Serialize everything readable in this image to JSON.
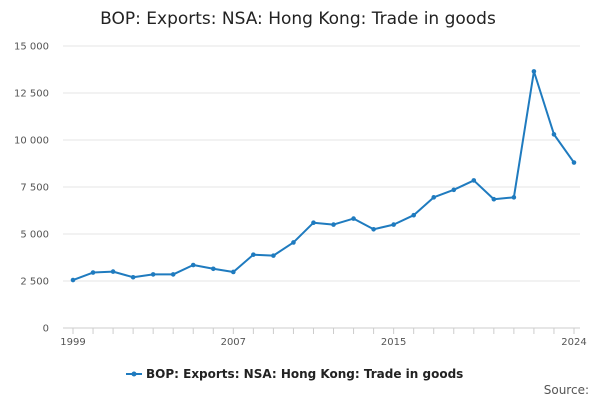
{
  "chart_data": {
    "type": "line",
    "title": "BOP: Exports: NSA: Hong Kong: Trade in goods",
    "xlabel": "",
    "ylabel": "",
    "x": [
      1999,
      2000,
      2001,
      2002,
      2003,
      2004,
      2005,
      2006,
      2007,
      2008,
      2009,
      2010,
      2011,
      2012,
      2013,
      2014,
      2015,
      2016,
      2017,
      2018,
      2019,
      2020,
      2021,
      2022,
      2023,
      2024
    ],
    "series": [
      {
        "name": "BOP: Exports: NSA: Hong Kong: Trade in goods",
        "color": "#1f7bbf",
        "values": [
          2550,
          2950,
          3000,
          2700,
          2850,
          2850,
          3350,
          3150,
          2980,
          3900,
          3850,
          4550,
          5600,
          5500,
          5820,
          5250,
          5500,
          6000,
          6950,
          7350,
          7850,
          6850,
          6950,
          13650,
          10300,
          8800
        ]
      }
    ],
    "ylim": [
      0,
      15000
    ],
    "xlim": [
      1999,
      2024
    ],
    "y_ticks": [
      0,
      2500,
      5000,
      7500,
      10000,
      12500,
      15000
    ],
    "y_tick_labels": [
      "0",
      "2 500",
      "5 000",
      "7 500",
      "10 000",
      "12 500",
      "15 000"
    ],
    "x_tick_labels": [
      {
        "value": 1999,
        "label": "1999"
      },
      {
        "value": 2007,
        "label": "2007"
      },
      {
        "value": 2015,
        "label": "2015"
      },
      {
        "value": 2024,
        "label": "2024"
      }
    ],
    "grid": true,
    "legend_position": "bottom",
    "source_label": "Source:"
  }
}
